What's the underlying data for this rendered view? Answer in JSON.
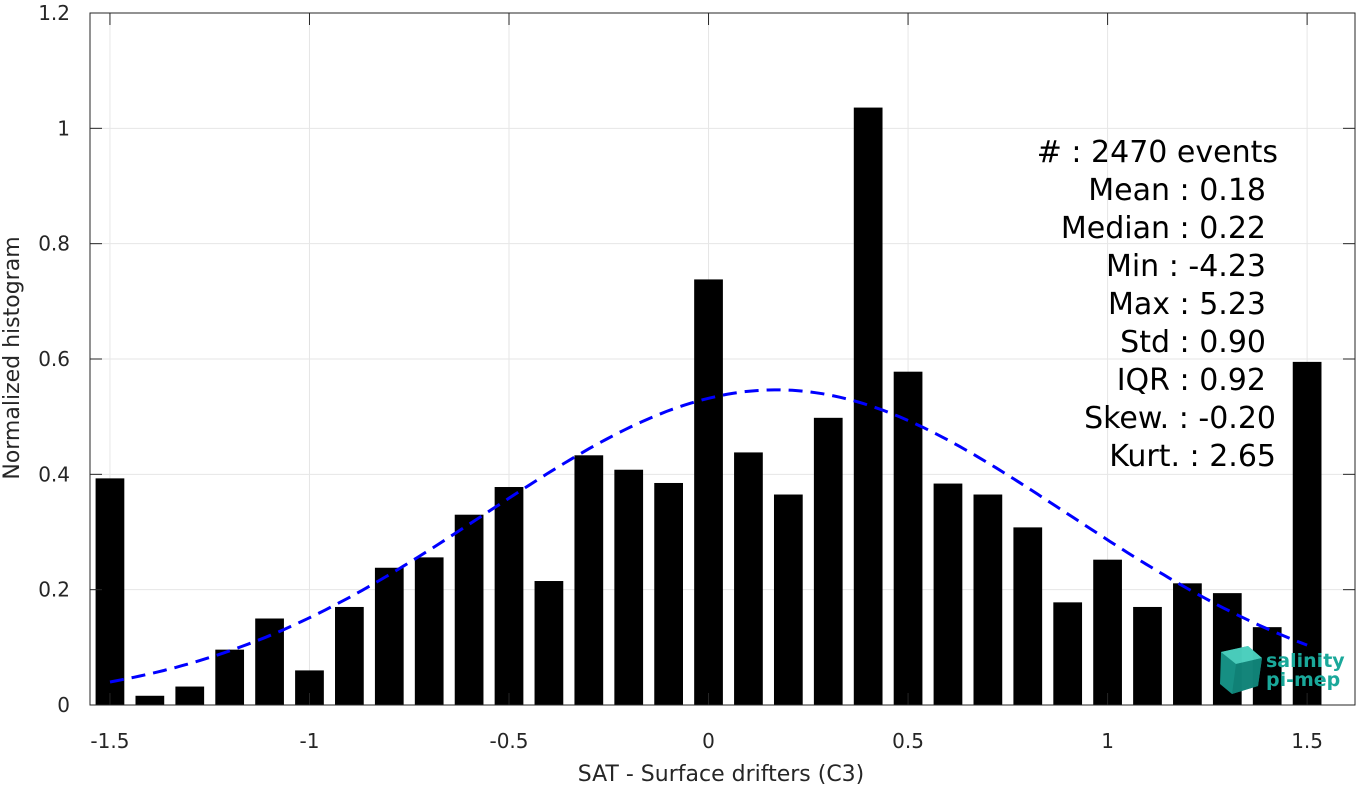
{
  "chart_data": {
    "type": "bar",
    "xlabel": "SAT - Surface drifters (C3)",
    "ylabel": "Normalized histogram",
    "xlim": [
      -1.55,
      1.62
    ],
    "ylim": [
      0,
      1.2
    ],
    "grid": true,
    "bar_width": 0.072,
    "x_ticks": [
      -1.5,
      -1,
      -0.5,
      0,
      0.5,
      1,
      1.5
    ],
    "x_tick_labels": [
      "-1.5",
      "-1",
      "-0.5",
      "0",
      "0.5",
      "1",
      "1.5"
    ],
    "y_ticks": [
      0,
      0.2,
      0.4,
      0.6,
      0.8,
      1,
      1.2
    ],
    "y_tick_labels": [
      "0",
      "0.2",
      "0.4",
      "0.6",
      "0.8",
      "1",
      "1.2"
    ],
    "bars": {
      "color": "#000000",
      "x": [
        -1.5,
        -1.4,
        -1.3,
        -1.2,
        -1.1,
        -1.0,
        -0.9,
        -0.8,
        -0.7,
        -0.6,
        -0.5,
        -0.4,
        -0.3,
        -0.2,
        -0.1,
        0.0,
        0.1,
        0.2,
        0.3,
        0.4,
        0.5,
        0.6,
        0.7,
        0.8,
        0.9,
        1.0,
        1.1,
        1.2,
        1.3,
        1.4,
        1.5
      ],
      "values": [
        0.393,
        0.016,
        0.032,
        0.096,
        0.15,
        0.06,
        0.17,
        0.238,
        0.256,
        0.33,
        0.378,
        0.215,
        0.433,
        0.408,
        0.385,
        0.738,
        0.438,
        0.365,
        0.498,
        1.036,
        0.578,
        0.384,
        0.365,
        0.308,
        0.178,
        0.252,
        0.17,
        0.211,
        0.194,
        0.135,
        0.595
      ]
    },
    "fit_curve": {
      "type": "normal",
      "color": "#0000ff",
      "style": "dashed",
      "mean": 0.17,
      "std": 0.73,
      "scale": 1.0,
      "x_range": [
        -1.5,
        1.5
      ]
    },
    "stats": [
      "#  : 2470 events",
      "Mean : 0.18",
      "Median : 0.22",
      "Min : -4.23",
      "Max : 5.23",
      "Std : 0.90",
      "IQR : 0.92",
      "Skew. : -0.20",
      "Kurt. : 2.65"
    ]
  },
  "logo": {
    "line1": "salinity",
    "line2": "pi-mep",
    "color": "#1aa89a",
    "icon": "cube-logo-icon"
  }
}
